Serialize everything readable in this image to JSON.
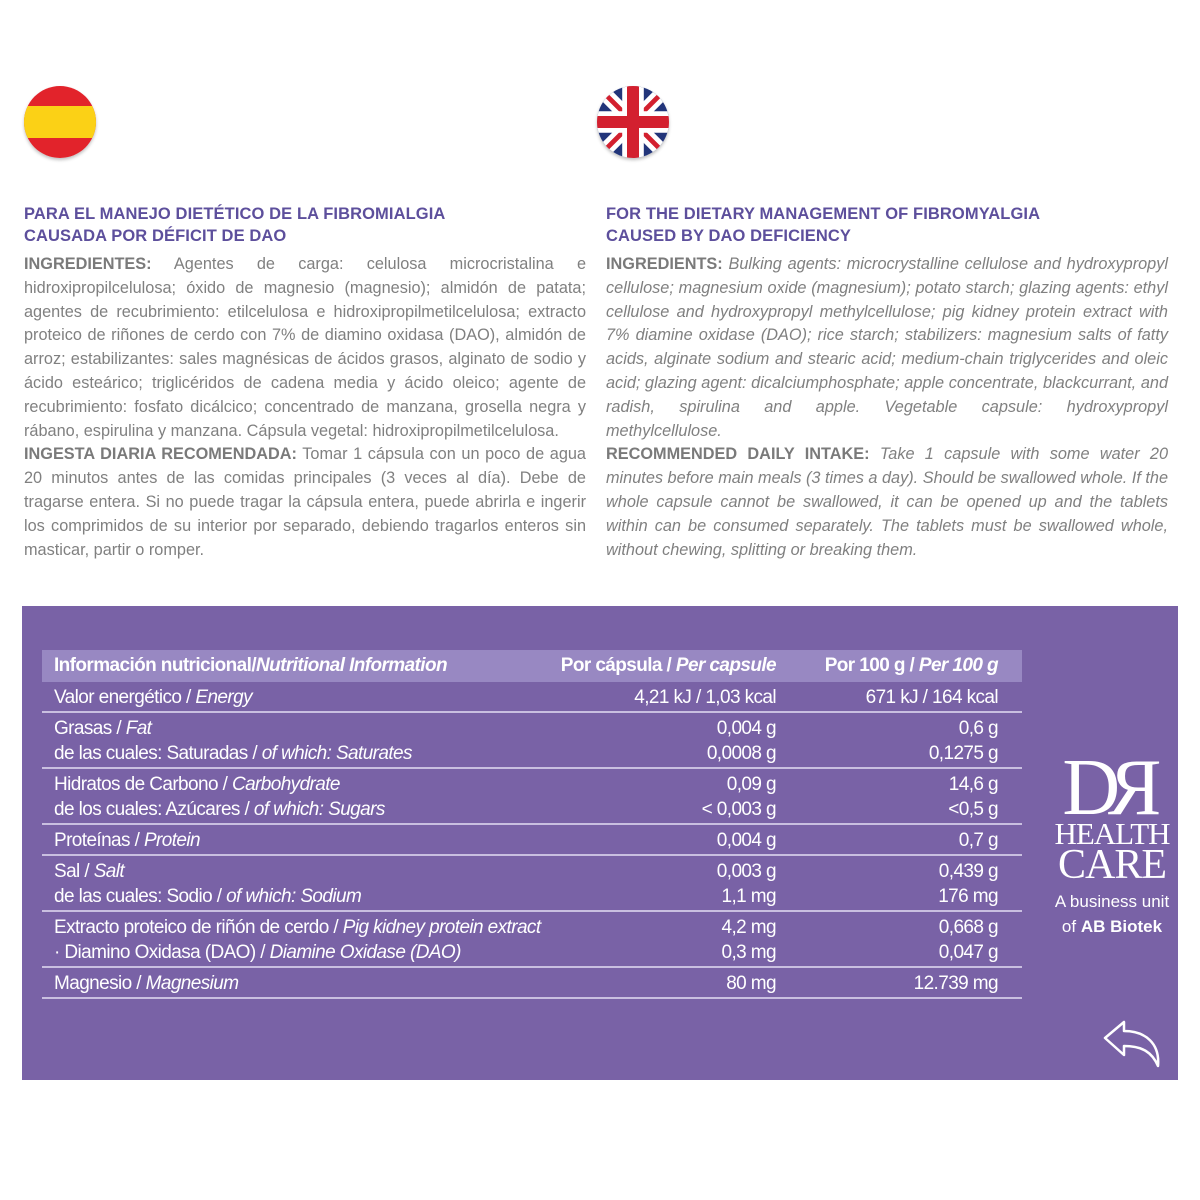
{
  "flags": {
    "left": "spain-flag",
    "right": "uk-flag"
  },
  "es": {
    "title_1": "PARA EL MANEJO DIETÉTICO DE LA FIBROMIALGIA",
    "title_2": "CAUSADA POR DÉFICIT DE DAO",
    "ingredients_label": "INGREDIENTES:",
    "ingredients": "Agentes de carga: celulosa microcristalina e hidroxipropilcelulosa; óxido de magnesio (magnesio); almidón de patata; agentes de recubrimiento: etilcelulosa e hidroxipropilmetilcelulosa; extracto proteico de riñones de cerdo con 7% de diamino oxidasa (DAO), almidón de arroz; estabilizantes: sales magnésicas de ácidos grasos, alginato de sodio y ácido esteárico; triglicéridos de cadena media y ácido oleico; agente de recubrimiento: fosfato dicálcico; concentrado de manzana, grosella negra y rábano, espirulina y manzana. Cápsula vegetal: hidroxipropilmetilcelulosa.",
    "intake_label": "INGESTA DIARIA RECOMENDADA:",
    "intake": "Tomar 1 cápsula con un poco de agua 20 minutos antes de las comidas principales (3 veces al día). Debe de tragarse entera. Si no puede tragar la cápsula entera, puede abrirla e ingerir los comprimidos de su interior por separado, debiendo tragarlos enteros sin masticar, partir o romper."
  },
  "en": {
    "title_1": "FOR THE DIETARY MANAGEMENT OF FIBROMYALGIA",
    "title_2": "CAUSED BY DAO DEFICIENCY",
    "ingredients_label": "INGREDIENTS:",
    "ingredients": "Bulking agents: microcrystalline cellulose and hydroxypropyl cellulose; magnesium oxide (magnesium); potato starch; glazing agents: ethyl cellulose and hydroxypropyl methylcellulose; pig kidney protein extract with 7% diamine oxidase (DAO); rice starch; stabilizers: magnesium salts of fatty acids, alginate sodium and stearic acid; medium-chain triglycerides and oleic acid; glazing agent: dicalciumphosphate; apple concentrate, blackcurrant, and radish, spirulina and apple. Vegetable capsule: hydroxypropyl methylcellulose.",
    "intake_label": "RECOMMENDED DAILY INTAKE:",
    "intake": "Take 1 capsule with some water 20 minutes before main meals (3 times a day). Should be swallowed whole. If the whole capsule cannot be swallowed, it can be opened up and the tablets within can be consumed separately. The tablets must be swallowed whole, without chewing, splitting or breaking them."
  },
  "table": {
    "header": {
      "c1_es": "Información nutricional/",
      "c1_en": "Nutritional Information",
      "c2_es": "Por cápsula / ",
      "c2_en": "Per capsule",
      "c3_es": "Por 100 g / ",
      "c3_en": "Per 100 g"
    },
    "groups": [
      [
        {
          "es": "Valor energético / ",
          "en": "Energy",
          "per_capsule": "4,21 kJ / 1,03 kcal",
          "per_100g": "671 kJ / 164 kcal"
        }
      ],
      [
        {
          "es": "Grasas / ",
          "en": "Fat",
          "per_capsule": "0,004 g",
          "per_100g": "0,6 g"
        },
        {
          "es": "de las cuales: Saturadas / ",
          "en": "of which: Saturates",
          "per_capsule": "0,0008 g",
          "per_100g": "0,1275 g"
        }
      ],
      [
        {
          "es": "Hidratos de Carbono / ",
          "en": "Carbohydrate",
          "per_capsule": "0,09 g",
          "per_100g": "14,6 g"
        },
        {
          "es": "de los cuales: Azúcares / ",
          "en": "of which: Sugars",
          "per_capsule": "< 0,003 g",
          "per_100g": "<0,5 g"
        }
      ],
      [
        {
          "es": "Proteínas / ",
          "en": "Protein",
          "per_capsule": "0,004 g",
          "per_100g": "0,7 g"
        }
      ],
      [
        {
          "es": "Sal / ",
          "en": "Salt",
          "per_capsule": "0,003 g",
          "per_100g": "0,439 g"
        },
        {
          "es": "de las cuales: Sodio / ",
          "en": "of which: Sodium",
          "per_capsule": "1,1 mg",
          "per_100g": "176 mg"
        }
      ],
      [
        {
          "es": "Extracto proteico de riñón de cerdo / ",
          "en": "Pig kidney protein extract",
          "per_capsule": "4,2 mg",
          "per_100g": "0,668 g"
        },
        {
          "es": "· Diamino Oxidasa (DAO) / ",
          "en": "Diamine Oxidase (DAO)",
          "per_capsule": "0,3 mg",
          "per_100g": "0,047 g"
        }
      ],
      [
        {
          "es": "Magnesio / ",
          "en": "Magnesium",
          "per_capsule": "80 mg",
          "per_100g": "12.739 mg"
        }
      ]
    ]
  },
  "logo": {
    "dr": "DR",
    "health": "HEALTH",
    "care": "CARE",
    "business_unit": "A business unit",
    "of": "of ",
    "company": "AB Biotek"
  },
  "colors": {
    "panel": "#7962a6",
    "header_row": "#9888c2",
    "heading": "#5d4f9c",
    "body_text": "#808080"
  },
  "back_icon": "back-arrow-icon"
}
